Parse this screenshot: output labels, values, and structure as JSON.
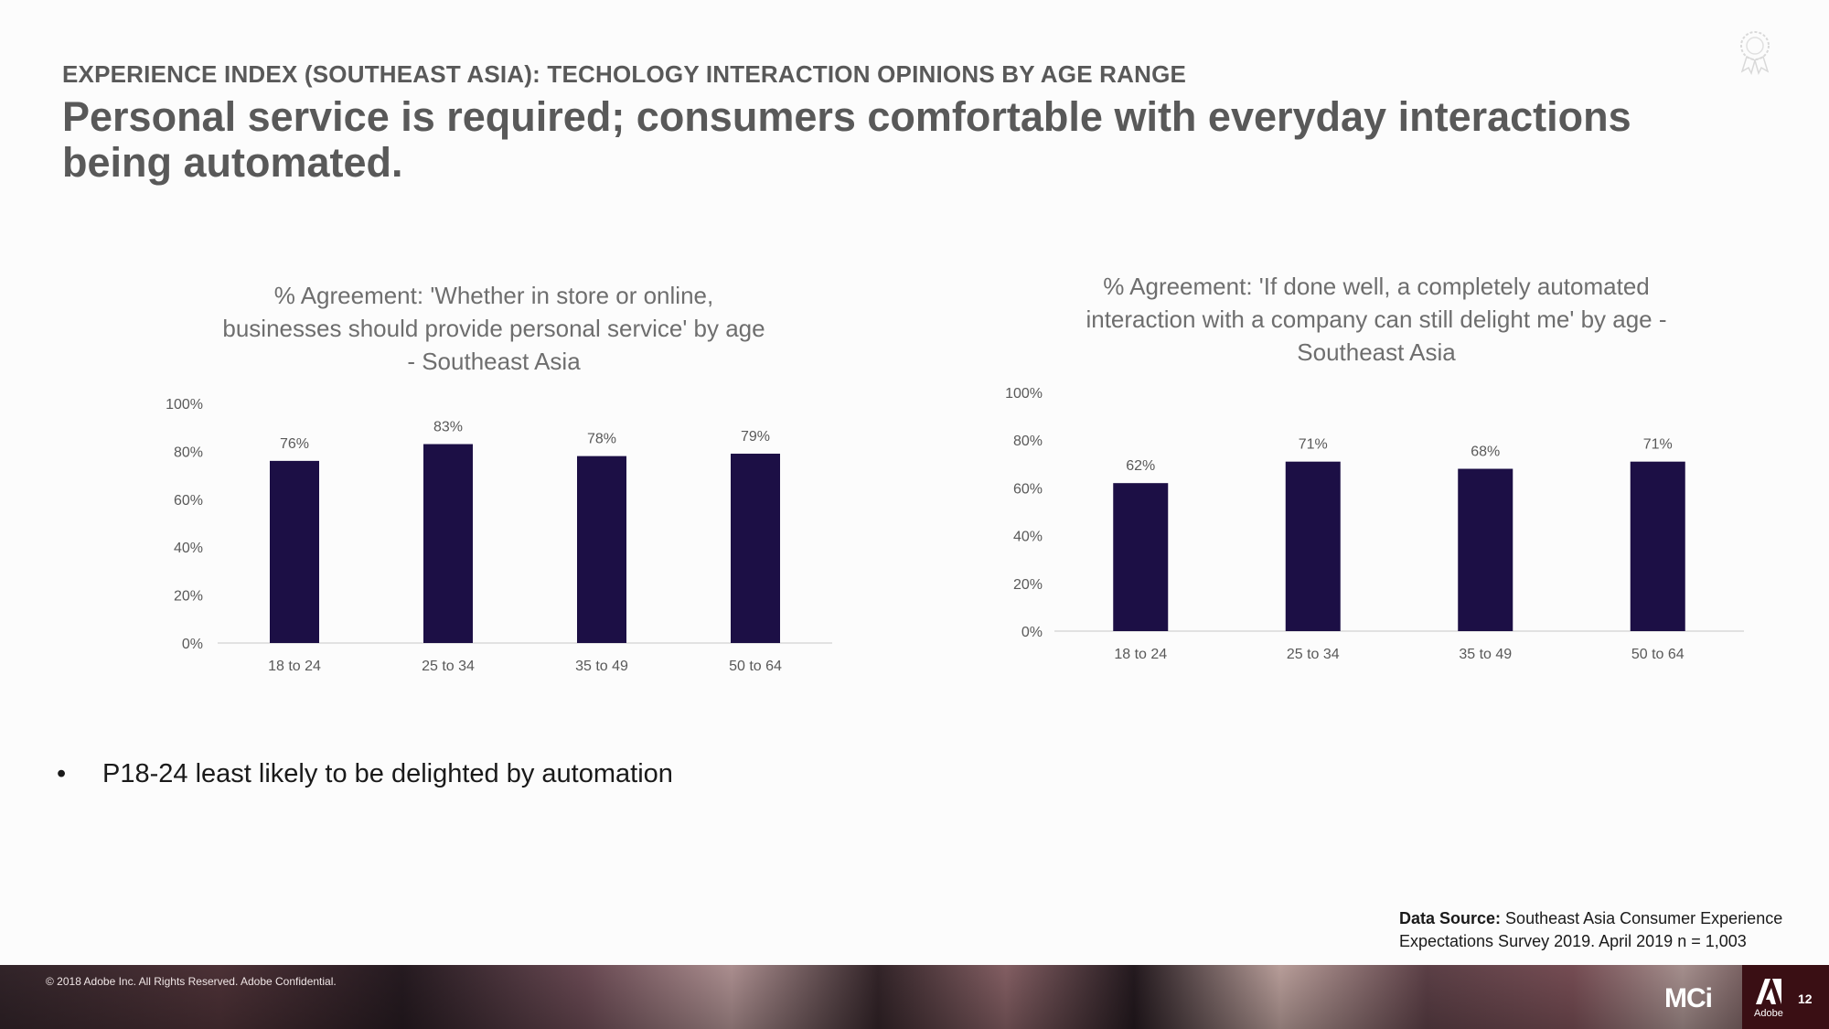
{
  "header": {
    "eyebrow": "EXPERIENCE INDEX (SOUTHEAST ASIA): TECHOLOGY INTERACTION OPINIONS BY AGE RANGE",
    "headline": "Personal service is required; consumers comfortable with everyday interactions being automated."
  },
  "chart_data": [
    {
      "type": "bar",
      "title_lines": [
        "% Agreement: 'Whether in store or online,",
        "businesses should provide personal service' by age",
        "- Southeast Asia"
      ],
      "categories": [
        "18 to 24",
        "25 to 34",
        "35 to 49",
        "50 to 64"
      ],
      "values": [
        76,
        83,
        78,
        79
      ],
      "data_labels": [
        "76%",
        "83%",
        "78%",
        "79%"
      ],
      "y_ticks": [
        "0%",
        "20%",
        "40%",
        "60%",
        "80%",
        "100%"
      ],
      "ylim": [
        0,
        100
      ],
      "bar_color": "#1c0f45",
      "grid": false,
      "legend": "none"
    },
    {
      "type": "bar",
      "title_lines": [
        "% Agreement: 'If done well, a completely automated",
        "interaction with a company can still delight me' by age -",
        "Southeast Asia"
      ],
      "categories": [
        "18 to 24",
        "25 to 34",
        "35 to 49",
        "50 to 64"
      ],
      "values": [
        62,
        71,
        68,
        71
      ],
      "data_labels": [
        "62%",
        "71%",
        "68%",
        "71%"
      ],
      "y_ticks": [
        "0%",
        "20%",
        "40%",
        "60%",
        "80%",
        "100%"
      ],
      "ylim": [
        0,
        100
      ],
      "bar_color": "#1c0f45",
      "grid": false,
      "legend": "none"
    }
  ],
  "bullet": {
    "marker": "•",
    "text": "P18-24 least likely to be delighted by automation"
  },
  "source": {
    "label": "Data Source:",
    "text": " Southeast Asia Consumer Experience Expectations Survey 2019. April 2019 n = 1,003"
  },
  "footer": {
    "copyright": "© 2018 Adobe Inc.  All Rights Reserved.  Adobe Confidential.",
    "mci_logo": "MCi",
    "adobe_label": "Adobe",
    "page_number": "12",
    "icons": [
      "award-seal-icon",
      "adobe-logo-icon"
    ]
  }
}
